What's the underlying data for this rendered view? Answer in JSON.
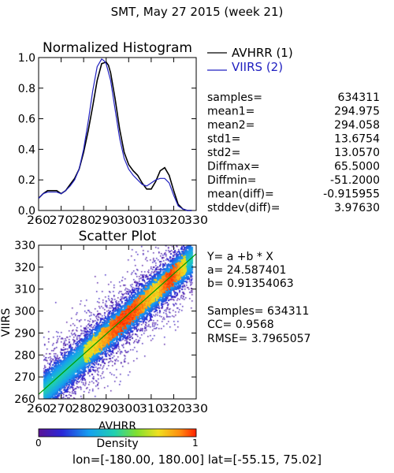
{
  "page_title": "SMT,  May 27 2015 (week 21)",
  "footer": "lon=[-180.00, 180.00] lat=[-55.15, 75.02]",
  "colors": {
    "series1": "#000000",
    "series2": "#2020c0",
    "fit_line": "#009a00"
  },
  "chart_data": [
    {
      "type": "line",
      "title": "Normalized Histogram",
      "xlabel": "",
      "ylabel": "",
      "xlim": [
        260,
        330
      ],
      "ylim": [
        0,
        1.0
      ],
      "x_ticks": [
        260,
        270,
        280,
        290,
        300,
        310,
        320,
        330
      ],
      "y_ticks": [
        0.0,
        0.2,
        0.4,
        0.6,
        0.8,
        1.0
      ],
      "y_tick_labels": [
        "0.0",
        "0.2",
        "0.4",
        "0.6",
        "0.8",
        "1.0"
      ],
      "legend": [
        {
          "name": "AVHRR (1)",
          "color": "#000000"
        },
        {
          "name": "VIIRS (2)",
          "color": "#2020c0"
        }
      ],
      "series": [
        {
          "name": "AVHRR (1)",
          "x": [
            260,
            262,
            264,
            266,
            268,
            270,
            272,
            274,
            276,
            278,
            280,
            282,
            284,
            286,
            288,
            290,
            291,
            292,
            294,
            296,
            298,
            300,
            302,
            304,
            306,
            308,
            310,
            312,
            314,
            316,
            318,
            320,
            322,
            324,
            326,
            328
          ],
          "y": [
            0.08,
            0.11,
            0.13,
            0.13,
            0.13,
            0.11,
            0.13,
            0.17,
            0.21,
            0.27,
            0.38,
            0.52,
            0.68,
            0.85,
            0.96,
            0.97,
            0.95,
            0.9,
            0.73,
            0.53,
            0.38,
            0.3,
            0.26,
            0.23,
            0.18,
            0.14,
            0.14,
            0.19,
            0.26,
            0.28,
            0.23,
            0.13,
            0.04,
            0.01,
            0.0,
            0.0
          ]
        },
        {
          "name": "VIIRS (2)",
          "x": [
            260,
            262,
            264,
            266,
            268,
            270,
            272,
            274,
            276,
            278,
            280,
            282,
            284,
            286,
            288,
            289,
            290,
            292,
            294,
            296,
            298,
            300,
            302,
            304,
            306,
            308,
            310,
            312,
            314,
            316,
            318,
            320,
            322,
            324,
            326,
            328
          ],
          "y": [
            0.08,
            0.11,
            0.12,
            0.12,
            0.12,
            0.11,
            0.13,
            0.16,
            0.2,
            0.27,
            0.4,
            0.58,
            0.78,
            0.94,
            0.99,
            0.98,
            0.96,
            0.85,
            0.66,
            0.47,
            0.34,
            0.27,
            0.23,
            0.2,
            0.17,
            0.16,
            0.18,
            0.2,
            0.21,
            0.21,
            0.18,
            0.1,
            0.03,
            0.01,
            0.0,
            0.0
          ]
        }
      ]
    },
    {
      "type": "heatmap",
      "title": "Scatter Plot",
      "xlabel": "AVHRR",
      "ylabel": "VIIRS",
      "xlim": [
        260,
        330
      ],
      "ylim": [
        260,
        330
      ],
      "x_ticks": [
        260,
        270,
        280,
        290,
        300,
        310,
        320,
        330
      ],
      "y_ticks": [
        260,
        270,
        280,
        290,
        300,
        310,
        320,
        330
      ],
      "fit": {
        "a": 24.587401,
        "b": 0.91354063
      },
      "colorbar": {
        "label": "Density",
        "min_label": "0",
        "max_label": "1",
        "range": [
          0,
          1
        ]
      }
    }
  ],
  "stats": [
    {
      "label": "samples=",
      "value": "634311"
    },
    {
      "label": "mean1=",
      "value": "294.975"
    },
    {
      "label": "mean2=",
      "value": "294.058"
    },
    {
      "label": "std1=",
      "value": "13.6754"
    },
    {
      "label": "std2=",
      "value": "13.0570"
    },
    {
      "label": "Diffmax=",
      "value": "65.5000"
    },
    {
      "label": "Diffmin=",
      "value": "-51.2000"
    },
    {
      "label": "mean(diff)=",
      "value": "-0.915955"
    },
    {
      "label": "stddev(diff)=",
      "value": "3.97630"
    }
  ],
  "regression": {
    "equation": "Y= a +b * X",
    "a_text": "a= 24.587401",
    "b_text": "b= 0.91354063",
    "samples_text": "Samples= 634311",
    "cc_text": "CC=  0.9568",
    "rmse_text": "RMSE= 3.7965057"
  }
}
